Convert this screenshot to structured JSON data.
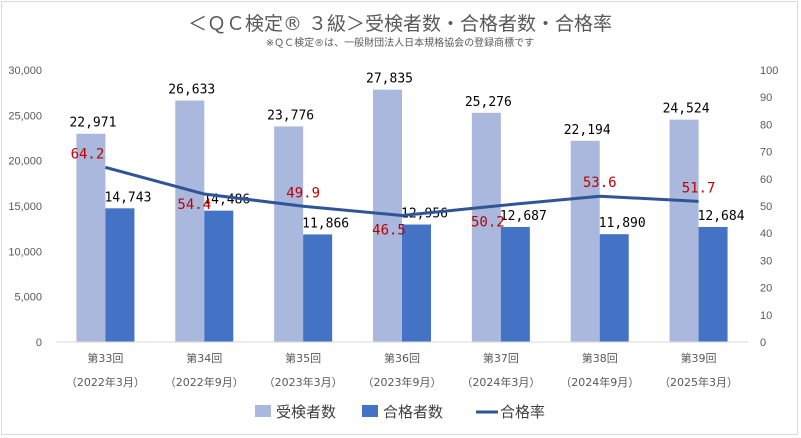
{
  "chart_data": {
    "type": "bar",
    "title": "＜ＱＣ検定® ３級＞受検者数・合格者数・合格率",
    "subtitle": "※ＱＣ検定®は、一般財団法人日本規格協会の登録商標です",
    "categories": [
      [
        "第33回",
        "（2022年3月）"
      ],
      [
        "第34回",
        "（2022年9月）"
      ],
      [
        "第35回",
        "（2023年3月）"
      ],
      [
        "第36回",
        "（2023年9月）"
      ],
      [
        "第37回",
        "（2024年3月）"
      ],
      [
        "第38回",
        "（2024年9月）"
      ],
      [
        "第39回",
        "（2025年3月）"
      ]
    ],
    "series": [
      {
        "name": "受検者数",
        "type": "bar",
        "axis": "left",
        "color": "#a9b8dc",
        "values": [
          22971,
          26633,
          23776,
          27835,
          25276,
          22194,
          24524
        ],
        "labels": [
          "22,971",
          "26,633",
          "23,776",
          "27,835",
          "25,276",
          "22,194",
          "24,524"
        ]
      },
      {
        "name": "合格者数",
        "type": "bar",
        "axis": "left",
        "color": "#4472c4",
        "values": [
          14743,
          14486,
          11866,
          12956,
          12687,
          11890,
          12684
        ],
        "labels": [
          "14,743",
          "14,486",
          "11,866",
          "12,956",
          "12,687",
          "11,890",
          "12,684"
        ]
      },
      {
        "name": "合格率",
        "type": "line",
        "axis": "right",
        "color": "#2f5597",
        "label_color": "#c00000",
        "values": [
          64.2,
          54.4,
          49.9,
          46.5,
          50.2,
          53.6,
          51.7
        ],
        "labels": [
          "64.2",
          "54.4",
          "49.9",
          "46.5",
          "50.2",
          "53.6",
          "51.7"
        ]
      }
    ],
    "y_left": {
      "range": [
        0,
        30000
      ],
      "ticks": [
        "0",
        "5,000",
        "10,000",
        "15,000",
        "20,000",
        "25,000",
        "30,000"
      ]
    },
    "y_right": {
      "range": [
        0,
        100
      ],
      "ticks": [
        "0",
        "10",
        "20",
        "30",
        "40",
        "50",
        "60",
        "70",
        "80",
        "90",
        "100"
      ]
    },
    "grid": false,
    "legend": "bottom"
  }
}
